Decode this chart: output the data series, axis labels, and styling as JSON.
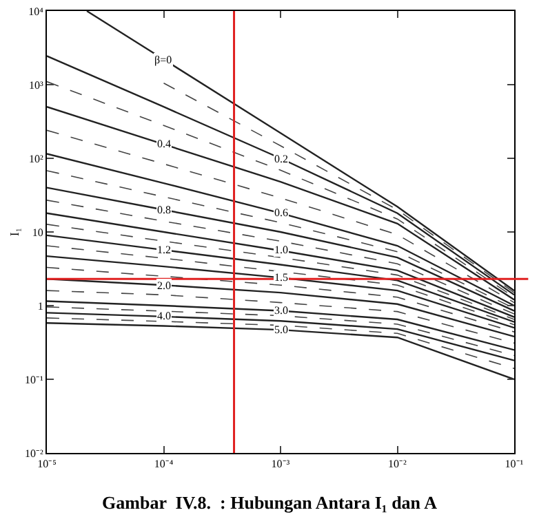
{
  "chart_data": {
    "type": "line",
    "title": "Gambar  IV.8.  : Hubungan Antara I₁ dan A",
    "ylabel": "I₁",
    "x": [
      1e-05,
      0.0001,
      0.001,
      0.01,
      0.1
    ],
    "series": [
      {
        "name": "β=0",
        "color": "#222222",
        "x": [
          2.2e-05,
          0.0001,
          0.001,
          0.01,
          0.1
        ],
        "values": [
          10000,
          2200,
          220,
          22,
          1.6
        ]
      },
      {
        "color": "#444444",
        "line_style": "dashed",
        "values": [
          null,
          1050,
          148,
          20,
          1.5
        ]
      },
      {
        "name": "0.2",
        "color": "#222222",
        "values": [
          2450,
          500,
          100,
          18,
          1.4
        ]
      },
      {
        "color": "#444444",
        "line_style": "dashed",
        "values": [
          1100,
          280,
          69,
          15,
          1.3
        ]
      },
      {
        "name": "0.4",
        "color": "#222222",
        "values": [
          500,
          155,
          48,
          13,
          1.2
        ]
      },
      {
        "color": "#444444",
        "line_style": "dashed",
        "values": [
          240,
          84,
          29,
          9.2,
          1.1
        ]
      },
      {
        "name": "0.6",
        "color": "#222222",
        "values": [
          115,
          46,
          18,
          6.5,
          1.0
        ]
      },
      {
        "color": "#444444",
        "line_style": "dashed",
        "values": [
          68,
          30,
          13.4,
          5.4,
          0.92
        ]
      },
      {
        "name": "0.8",
        "color": "#222222",
        "values": [
          40,
          20,
          10,
          4.5,
          0.85
        ]
      },
      {
        "color": "#444444",
        "line_style": "dashed",
        "values": [
          27,
          14,
          7.5,
          3.7,
          0.77
        ]
      },
      {
        "name": "1.0",
        "color": "#222222",
        "values": [
          18,
          10,
          5.6,
          3.0,
          0.7
        ]
      },
      {
        "color": "#444444",
        "line_style": "dashed",
        "values": [
          12.7,
          7.5,
          4.5,
          2.6,
          0.65
        ]
      },
      {
        "name": "1.2",
        "color": "#222222",
        "values": [
          9,
          5.7,
          3.6,
          2.2,
          0.6
        ]
      },
      {
        "color": "#444444",
        "line_style": "dashed",
        "values": [
          6.5,
          4.4,
          2.9,
          1.9,
          0.55
        ]
      },
      {
        "name": "1.5",
        "color": "#222222",
        "values": [
          4.7,
          3.4,
          2.4,
          1.6,
          0.5
        ]
      },
      {
        "color": "#444444",
        "line_style": "dashed",
        "values": [
          3.3,
          2.5,
          1.9,
          1.3,
          0.44
        ]
      },
      {
        "name": "2.0",
        "color": "#222222",
        "values": [
          2.3,
          1.9,
          1.5,
          1.05,
          0.38
        ]
      },
      {
        "color": "#444444",
        "line_style": "dashed",
        "values": [
          1.6,
          1.4,
          1.1,
          0.83,
          0.31
        ]
      },
      {
        "name": "3.0",
        "color": "#222222",
        "values": [
          1.15,
          1.0,
          0.85,
          0.65,
          0.25
        ]
      },
      {
        "color": "#444444",
        "line_style": "dashed",
        "values": [
          0.96,
          0.84,
          0.73,
          0.56,
          0.21
        ]
      },
      {
        "name": "4.0",
        "color": "#222222",
        "values": [
          0.8,
          0.71,
          0.62,
          0.48,
          0.18
        ]
      },
      {
        "color": "#444444",
        "line_style": "dashed",
        "values": [
          0.68,
          0.61,
          0.54,
          0.42,
          0.14
        ]
      },
      {
        "name": "5.0",
        "color": "#222222",
        "values": [
          0.58,
          0.53,
          0.47,
          0.37,
          0.1
        ]
      }
    ],
    "log": "xy",
    "xlim": [
      1e-05,
      0.1
    ],
    "xticks": [
      {
        "value": 1e-05,
        "label": "10⁻⁵"
      },
      {
        "value": 0.0001,
        "label": "10⁻⁴"
      },
      {
        "value": 0.001,
        "label": "10⁻³"
      },
      {
        "value": 0.01,
        "label": "10⁻²"
      },
      {
        "value": 0.1,
        "label": "10⁻¹"
      }
    ],
    "ylim": [
      0.01,
      10000
    ],
    "yticks": [
      {
        "value": 0.01,
        "label": "10⁻²"
      },
      {
        "value": 0.1,
        "label": "10⁻¹"
      },
      1,
      10,
      {
        "value": 100,
        "label": "10²"
      },
      {
        "value": 1000,
        "label": "10³"
      },
      {
        "value": 10000,
        "label": "10⁴"
      }
    ],
    "ref_lines": [
      {
        "axis": "x",
        "value": 0.0004,
        "color": "#e02020"
      },
      {
        "axis": "y",
        "value": 2.3,
        "color": "#e02020"
      }
    ],
    "grid": false,
    "legend": false,
    "marker": "none",
    "line_style": "solid"
  }
}
